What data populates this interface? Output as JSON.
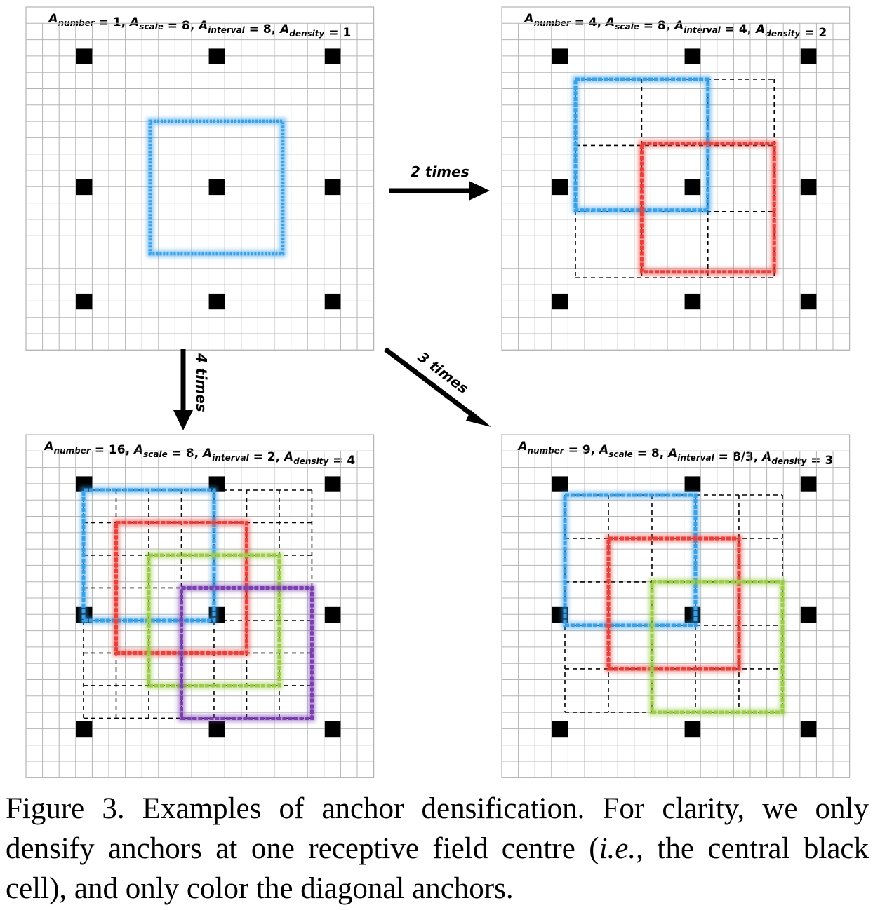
{
  "panels": [
    {
      "id": "p1",
      "header": [
        {
          "t": "A",
          "s": "number"
        },
        {
          "t": " = 1, "
        },
        {
          "t": "A",
          "s": "scale"
        },
        {
          "t": " = 8, "
        },
        {
          "t": "A",
          "s": "interval"
        },
        {
          "t": " = 8, "
        },
        {
          "t": "A",
          "s": "density"
        },
        {
          "t": " = 1"
        }
      ],
      "anchor_number": 1,
      "anchor_scale": 8,
      "anchor_interval": "8",
      "anchor_density": 1,
      "colored_anchors": [
        "blue"
      ]
    },
    {
      "id": "p2",
      "header": [
        {
          "t": "A",
          "s": "number"
        },
        {
          "t": " = 4, "
        },
        {
          "t": "A",
          "s": "scale"
        },
        {
          "t": " = 8, "
        },
        {
          "t": "A",
          "s": "interval"
        },
        {
          "t": " = 4, "
        },
        {
          "t": "A",
          "s": "density"
        },
        {
          "t": " = 2"
        }
      ],
      "anchor_number": 4,
      "anchor_scale": 8,
      "anchor_interval": "4",
      "anchor_density": 2,
      "colored_anchors": [
        "blue",
        "red"
      ]
    },
    {
      "id": "p3",
      "header": [
        {
          "t": "A",
          "s": "number"
        },
        {
          "t": " = 16, "
        },
        {
          "t": "A",
          "s": "scale"
        },
        {
          "t": " = 8, "
        },
        {
          "t": "A",
          "s": "interval"
        },
        {
          "t": " = 2, "
        },
        {
          "t": "A",
          "s": "density"
        },
        {
          "t": " = 4"
        }
      ],
      "anchor_number": 16,
      "anchor_scale": 8,
      "anchor_interval": "2",
      "anchor_density": 4,
      "colored_anchors": [
        "blue",
        "red",
        "green",
        "purple"
      ]
    },
    {
      "id": "p4",
      "header": [
        {
          "t": "A",
          "s": "number"
        },
        {
          "t": " = 9, "
        },
        {
          "t": "A",
          "s": "scale"
        },
        {
          "t": " = 8, "
        },
        {
          "t": "A",
          "s": "interval"
        },
        {
          "t": " = 8/3, "
        },
        {
          "t": "A",
          "s": "density"
        },
        {
          "t": " = 3"
        }
      ],
      "anchor_number": 9,
      "anchor_scale": 8,
      "anchor_interval": "8/3",
      "anchor_density": 3,
      "colored_anchors": [
        "blue",
        "red",
        "green"
      ]
    }
  ],
  "arrows": {
    "two": "2 times",
    "four": "4 times",
    "three": "3 times"
  },
  "colors": {
    "blue": "#3aa0e8",
    "red": "#e8403a",
    "green": "#9ccc4a",
    "purple": "#7a3fb0",
    "grid": "#b5b5b5",
    "cell": "#000000"
  },
  "caption": {
    "part1": "Figure 3. Examples of anchor densification.  For clarity, we only densify anchors at one receptive field centre (",
    "ie": "i.e.",
    "part2": ", the central black cell), and only color the diagonal anchors."
  }
}
